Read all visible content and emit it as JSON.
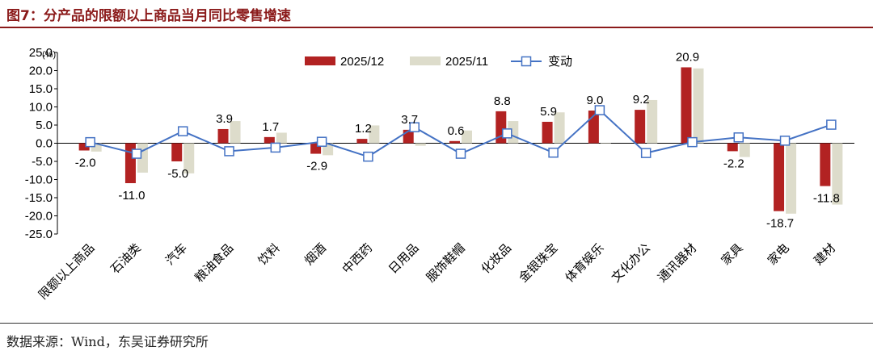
{
  "header": {
    "title": "图7：分产品的限额以上商品当月同比零售增速"
  },
  "footer": {
    "source": "数据来源：Wind，东吴证券研究所"
  },
  "colors": {
    "s1": "#B22222",
    "s2": "#DDDCCB",
    "line": "#4472C4",
    "title": "#8B1A1A"
  },
  "chart_data": {
    "type": "bar",
    "title": "分产品的限额以上商品当月同比零售增速",
    "ylabel": "(%)",
    "ylim": [
      -25,
      25
    ],
    "yticks": [
      -25,
      -20,
      -15,
      -10,
      -5,
      0,
      5,
      10,
      15,
      20,
      25
    ],
    "ytick_labels": [
      "-25.0",
      "-20.0",
      "-15.0",
      "-10.0",
      "-5.0",
      "0.0",
      "5.0",
      "10.0",
      "15.0",
      "20.0",
      "25.0"
    ],
    "categories": [
      "限额以上商品",
      "石油类",
      "汽车",
      "粮油食品",
      "饮料",
      "烟酒",
      "中西药",
      "日用品",
      "服饰鞋帽",
      "化妆品",
      "金银珠宝",
      "体育娱乐",
      "文化办公",
      "通讯器材",
      "家具",
      "家电",
      "建材"
    ],
    "series": [
      {
        "name": "2025/12",
        "kind": "bar",
        "values": [
          -2.0,
          -11.0,
          -5.0,
          3.9,
          1.7,
          -2.9,
          1.2,
          3.7,
          0.6,
          8.8,
          5.9,
          9.0,
          9.2,
          20.9,
          -2.2,
          -18.7,
          -11.8
        ]
      },
      {
        "name": "2025/11",
        "kind": "bar",
        "values": [
          -2.3,
          -8.1,
          -8.3,
          6.1,
          2.9,
          -3.3,
          4.9,
          -0.7,
          3.5,
          6.1,
          8.5,
          -0.1,
          11.9,
          20.6,
          -3.8,
          -19.4,
          -16.9
        ]
      },
      {
        "name": "变动",
        "kind": "line",
        "values": [
          0.3,
          -2.9,
          3.3,
          -2.2,
          -1.2,
          0.4,
          -3.7,
          4.4,
          -2.9,
          2.7,
          -2.6,
          9.1,
          -2.7,
          0.3,
          1.6,
          0.7,
          5.1
        ]
      }
    ],
    "data_labels": [
      "-2.0",
      "-11.0",
      "-5.0",
      "3.9",
      "1.7",
      "-2.9",
      "1.2",
      "3.7",
      "0.6",
      "8.8",
      "5.9",
      "9.0",
      "9.2",
      "20.9",
      "-2.2",
      "-18.7",
      "-11.8"
    ],
    "legend": {
      "position": "top-center",
      "entries": [
        "2025/12",
        "2025/11",
        "变动"
      ]
    },
    "grid": false
  }
}
